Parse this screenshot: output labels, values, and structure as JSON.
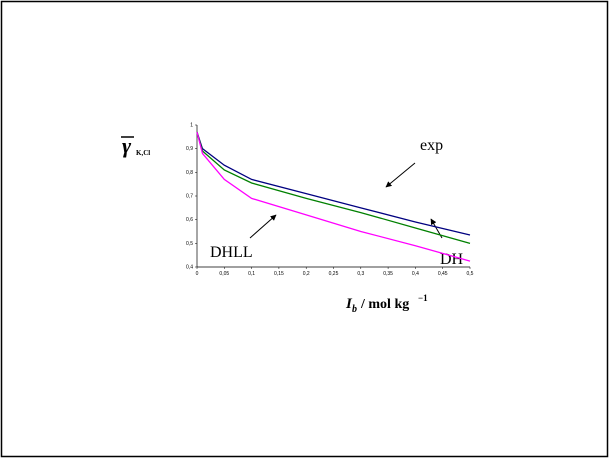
{
  "chart_data": {
    "type": "line",
    "x": [
      0,
      0.01,
      0.05,
      0.1,
      0.2,
      0.3,
      0.4,
      0.5
    ],
    "series": [
      {
        "name": "exp",
        "color": "#000080",
        "values": [
          0.97,
          0.9,
          0.83,
          0.77,
          0.71,
          0.65,
          0.59,
          0.535
        ]
      },
      {
        "name": "DH",
        "color": "#008000",
        "values": [
          0.97,
          0.89,
          0.81,
          0.755,
          0.69,
          0.63,
          0.565,
          0.5
        ]
      },
      {
        "name": "DHLL",
        "color": "#ff00ff",
        "values": [
          0.97,
          0.88,
          0.77,
          0.69,
          0.62,
          0.55,
          0.49,
          0.425
        ]
      }
    ],
    "xlim": [
      0,
      0.5
    ],
    "ylim": [
      0.4,
      1
    ],
    "xticks": [
      0,
      {
        "value": 0.05,
        "label": "0,05"
      },
      {
        "value": 0.1,
        "label": "0,1"
      },
      {
        "value": 0.15,
        "label": "0,15"
      },
      {
        "value": 0.2,
        "label": "0,2"
      },
      {
        "value": 0.25,
        "label": "0,25"
      },
      {
        "value": 0.3,
        "label": "0,3"
      },
      {
        "value": 0.35,
        "label": "0,35"
      },
      {
        "value": 0.4,
        "label": "0,4"
      },
      {
        "value": 0.45,
        "label": "0,45"
      },
      {
        "value": 0.5,
        "label": "0,5"
      }
    ],
    "yticks": [
      {
        "value": 0.4,
        "label": "0,4"
      },
      {
        "value": 0.5,
        "label": "0,5"
      },
      {
        "value": 0.6,
        "label": "0,6"
      },
      {
        "value": 0.7,
        "label": "0,7"
      },
      {
        "value": 0.8,
        "label": "0,8"
      },
      {
        "value": 0.9,
        "label": "0,9"
      },
      1
    ],
    "y_label": {
      "symbol": "γ",
      "subscript": "K,Cl"
    },
    "x_label": {
      "symbol": "I",
      "subscript": "b",
      "unit": "/ mol kg",
      "exponent": "−1"
    }
  }
}
